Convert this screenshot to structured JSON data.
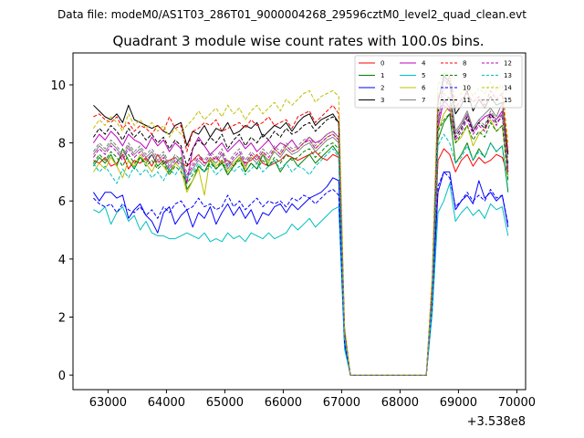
{
  "suptitle": "Data file: modeM0/AS1T03_286T01_9000004268_29596cztM0_level2_quad_clean.evt",
  "chart_data": {
    "type": "line",
    "title": "Quadrant 3 module wise count rates with 100.0s bins.",
    "xlabel": "",
    "ylabel": "",
    "x_offset_label": "+3.538e8",
    "xlim": [
      62400,
      70150
    ],
    "ylim": [
      -0.5,
      11.1
    ],
    "xticks": [
      63000,
      64000,
      65000,
      66000,
      67000,
      68000,
      69000,
      70000
    ],
    "xtick_labels": [
      "63000",
      "64000",
      "65000",
      "66000",
      "67000",
      "68000",
      "69000",
      "70000"
    ],
    "yticks": [
      0,
      2,
      4,
      6,
      8,
      10
    ],
    "ytick_labels": [
      "0",
      "2",
      "4",
      "6",
      "8",
      "10"
    ],
    "grid": false,
    "legend": {
      "position": "top-right",
      "columns": 4,
      "entries": [
        "0",
        "1",
        "2",
        "3",
        "4",
        "5",
        "6",
        "7",
        "8",
        "9",
        "10",
        "11",
        "12",
        "13",
        "14",
        "15"
      ]
    },
    "x_start": 62750,
    "x_step": 100,
    "series": [
      {
        "name": "0",
        "color": "#ff0000",
        "dash": "solid",
        "values": [
          7.4,
          7.3,
          7.5,
          7.2,
          7.3,
          7.6,
          7.1,
          7.4,
          7.3,
          7.5,
          7.2,
          7.6,
          7.3,
          7.4,
          7.5,
          7.3,
          7.2,
          7.4,
          7.6,
          7.3,
          7.4,
          7.5,
          7.3,
          7.4,
          7.2,
          7.5,
          7.3,
          7.4,
          7.6,
          7.3,
          7.2,
          7.3,
          7.4,
          7.6,
          7.5,
          7.4,
          7.5,
          7.6,
          7.7,
          7.5,
          7.4,
          7.6,
          7.5,
          1.3,
          0,
          0,
          0,
          0,
          0,
          0,
          0,
          0,
          0,
          0,
          0,
          0,
          0,
          0,
          2.5,
          7.4,
          7.8,
          7.6,
          7.0,
          7.4,
          7.6,
          7.2,
          7.5,
          7.3,
          7.4,
          7.6,
          7.5,
          6.9
        ]
      },
      {
        "name": "1",
        "color": "#008000",
        "dash": "solid",
        "values": [
          7.2,
          7.5,
          7.3,
          7.6,
          7.2,
          7.8,
          7.4,
          7.1,
          7.5,
          7.3,
          7.6,
          7.2,
          7.4,
          7.0,
          7.3,
          7.5,
          6.4,
          6.7,
          7.2,
          7.0,
          7.4,
          7.1,
          7.3,
          6.9,
          7.2,
          7.5,
          7.0,
          7.3,
          7.1,
          7.6,
          7.2,
          7.4,
          7.0,
          7.3,
          7.5,
          7.2,
          7.4,
          7.6,
          7.3,
          7.5,
          7.7,
          7.9,
          7.6,
          1.2,
          0,
          0,
          0,
          0,
          0,
          0,
          0,
          0,
          0,
          0,
          0,
          0,
          0,
          0,
          2.7,
          8.1,
          8.7,
          9.0,
          7.3,
          7.6,
          8.0,
          7.4,
          7.8,
          7.5,
          8.0,
          7.7,
          7.9,
          6.3
        ]
      },
      {
        "name": "2",
        "color": "#0000ff",
        "dash": "solid",
        "values": [
          6.3,
          6.0,
          6.3,
          6.3,
          6.1,
          6.2,
          5.4,
          5.7,
          5.9,
          5.5,
          5.3,
          4.9,
          5.6,
          5.8,
          5.2,
          5.5,
          5.7,
          5.1,
          5.6,
          5.4,
          5.8,
          5.2,
          5.6,
          5.9,
          5.5,
          5.8,
          5.4,
          5.7,
          5.2,
          5.6,
          5.5,
          5.8,
          5.9,
          5.6,
          5.9,
          5.7,
          5.9,
          6.1,
          6.2,
          6.3,
          6.5,
          6.8,
          6.7,
          1.1,
          0,
          0,
          0,
          0,
          0,
          0,
          0,
          0,
          0,
          0,
          0,
          0,
          0,
          0,
          2.6,
          6.3,
          7.0,
          7.0,
          5.7,
          6.0,
          6.2,
          5.9,
          6.7,
          6.1,
          6.3,
          6.0,
          6.2,
          5.1
        ]
      },
      {
        "name": "3",
        "color": "#000000",
        "dash": "solid",
        "values": [
          9.3,
          9.1,
          8.9,
          8.8,
          9.0,
          8.7,
          9.3,
          8.8,
          8.7,
          8.6,
          8.5,
          8.6,
          8.4,
          8.3,
          8.6,
          8.7,
          7.9,
          8.4,
          8.3,
          8.6,
          8.2,
          8.5,
          8.4,
          8.7,
          8.3,
          8.4,
          8.6,
          8.5,
          8.7,
          8.2,
          8.4,
          8.6,
          8.5,
          8.7,
          8.4,
          8.7,
          8.9,
          9.0,
          8.6,
          8.8,
          8.9,
          9.0,
          8.7,
          1.5,
          0,
          0,
          0,
          0,
          0,
          0,
          0,
          0,
          0,
          0,
          0,
          0,
          0,
          0,
          3.0,
          9.4,
          10.3,
          10.1,
          9.0,
          9.3,
          9.8,
          9.1,
          9.5,
          9.2,
          9.6,
          9.3,
          9.4,
          7.6
        ]
      },
      {
        "name": "4",
        "color": "#bf00bf",
        "dash": "solid",
        "values": [
          8.0,
          8.3,
          8.1,
          8.4,
          8.2,
          7.9,
          8.3,
          8.1,
          8.0,
          7.8,
          8.2,
          7.9,
          8.1,
          7.7,
          8.0,
          7.8,
          6.6,
          7.8,
          8.2,
          7.9,
          7.6,
          7.8,
          8.0,
          7.7,
          7.9,
          8.1,
          7.8,
          8.0,
          7.7,
          7.9,
          8.1,
          7.8,
          8.0,
          7.9,
          8.1,
          7.8,
          8.0,
          8.2,
          8.0,
          8.1,
          8.3,
          8.4,
          8.2,
          1.4,
          0,
          0,
          0,
          0,
          0,
          0,
          0,
          0,
          0,
          0,
          0,
          0,
          0,
          0,
          2.8,
          8.5,
          9.5,
          9.2,
          8.3,
          8.6,
          9.0,
          8.4,
          8.7,
          8.9,
          9.0,
          8.8,
          9.1,
          7.0
        ]
      },
      {
        "name": "5",
        "color": "#00bfbf",
        "dash": "solid",
        "values": [
          5.7,
          5.6,
          5.8,
          5.2,
          5.6,
          5.8,
          5.3,
          5.5,
          5.0,
          5.3,
          4.9,
          4.8,
          4.8,
          4.7,
          4.7,
          4.8,
          4.9,
          4.8,
          4.7,
          4.9,
          4.6,
          4.7,
          4.6,
          4.9,
          4.7,
          4.8,
          4.6,
          4.9,
          4.8,
          4.7,
          4.9,
          4.7,
          4.8,
          4.9,
          5.2,
          5.0,
          5.2,
          5.4,
          5.1,
          5.3,
          5.5,
          5.7,
          5.8,
          0.9,
          0,
          0,
          0,
          0,
          0,
          0,
          0,
          0,
          0,
          0,
          0,
          0,
          0,
          0,
          2.1,
          5.6,
          6.0,
          6.6,
          5.3,
          5.6,
          5.8,
          5.5,
          5.7,
          5.4,
          5.9,
          5.7,
          5.8,
          4.8
        ]
      },
      {
        "name": "6",
        "color": "#bfbf00",
        "dash": "solid",
        "values": [
          7.0,
          7.3,
          7.1,
          7.5,
          7.2,
          6.8,
          7.4,
          7.2,
          7.6,
          7.3,
          7.0,
          7.4,
          7.2,
          6.9,
          7.3,
          7.1,
          6.3,
          6.7,
          7.1,
          6.2,
          7.5,
          7.2,
          7.4,
          7.0,
          7.3,
          7.5,
          7.1,
          7.6,
          7.4,
          7.7,
          7.3,
          7.8,
          7.6,
          7.9,
          7.7,
          7.8,
          8.0,
          8.1,
          7.8,
          8.0,
          8.2,
          8.3,
          8.1,
          1.3,
          0,
          0,
          0,
          0,
          0,
          0,
          0,
          0,
          0,
          0,
          0,
          0,
          0,
          0,
          2.9,
          8.4,
          9.0,
          9.3,
          8.0,
          8.2,
          8.6,
          7.9,
          8.3,
          8.5,
          8.8,
          8.4,
          8.6,
          6.8
        ]
      },
      {
        "name": "7",
        "color": "#808080",
        "dash": "solid",
        "values": [
          7.6,
          7.9,
          7.7,
          8.0,
          7.8,
          7.5,
          7.9,
          7.6,
          7.8,
          7.5,
          7.7,
          7.4,
          7.6,
          7.2,
          7.5,
          7.3,
          6.8,
          7.1,
          7.4,
          7.2,
          7.5,
          7.3,
          7.6,
          7.1,
          7.4,
          7.6,
          7.2,
          7.5,
          7.3,
          7.6,
          7.4,
          7.7,
          7.5,
          7.8,
          7.6,
          7.7,
          7.9,
          8.0,
          7.7,
          7.9,
          8.1,
          8.2,
          8.0,
          1.4,
          0,
          0,
          0,
          0,
          0,
          0,
          0,
          0,
          0,
          0,
          0,
          0,
          0,
          0,
          2.8,
          8.6,
          10.2,
          10.0,
          8.4,
          8.7,
          9.1,
          8.5,
          8.8,
          9.0,
          9.2,
          8.9,
          9.4,
          7.1
        ]
      },
      {
        "name": "8",
        "color": "#ff0000",
        "dash": "dashed",
        "values": [
          8.9,
          9.0,
          8.8,
          8.7,
          8.9,
          8.5,
          8.7,
          8.4,
          8.6,
          8.5,
          8.3,
          8.6,
          8.4,
          8.9,
          8.5,
          8.6,
          7.7,
          8.4,
          8.5,
          8.7,
          8.6,
          8.8,
          8.4,
          8.5,
          8.6,
          8.7,
          8.5,
          8.8,
          8.6,
          8.7,
          8.9,
          8.6,
          8.7,
          8.8,
          8.5,
          8.9,
          9.0,
          9.1,
          8.7,
          8.9,
          9.1,
          9.3,
          9.0,
          1.6,
          0,
          0,
          0,
          0,
          0,
          0,
          0,
          0,
          0,
          0,
          0,
          0,
          0,
          0,
          3.3,
          9.6,
          9.8,
          10.3,
          9.2,
          9.5,
          9.7,
          9.4,
          9.6,
          9.3,
          9.8,
          9.5,
          9.7,
          7.7
        ]
      },
      {
        "name": "9",
        "color": "#008000",
        "dash": "dashed",
        "values": [
          7.3,
          7.6,
          7.4,
          7.7,
          7.5,
          7.2,
          7.6,
          7.3,
          7.5,
          7.2,
          7.4,
          7.1,
          7.3,
          6.9,
          7.2,
          7.0,
          6.6,
          6.9,
          7.2,
          7.0,
          7.3,
          7.1,
          7.4,
          6.9,
          7.2,
          7.4,
          7.0,
          7.3,
          7.1,
          7.4,
          7.2,
          7.5,
          7.3,
          7.6,
          7.4,
          7.5,
          7.7,
          7.8,
          7.5,
          7.7,
          7.9,
          8.0,
          7.8,
          1.3,
          0,
          0,
          0,
          0,
          0,
          0,
          0,
          0,
          0,
          0,
          0,
          0,
          0,
          0,
          2.7,
          8.4,
          8.8,
          9.0,
          8.0,
          8.3,
          8.6,
          8.1,
          8.4,
          8.2,
          8.7,
          8.4,
          8.6,
          6.7
        ]
      },
      {
        "name": "10",
        "color": "#0000ff",
        "dash": "dashed",
        "values": [
          6.1,
          5.9,
          5.8,
          5.9,
          5.6,
          5.9,
          5.7,
          5.6,
          5.8,
          5.5,
          5.7,
          5.4,
          5.8,
          5.6,
          5.9,
          6.0,
          5.7,
          5.8,
          6.1,
          5.8,
          5.9,
          5.7,
          5.8,
          6.2,
          5.8,
          6.0,
          5.7,
          5.9,
          6.1,
          5.8,
          6.0,
          5.9,
          6.0,
          5.8,
          6.1,
          6.0,
          6.2,
          6.1,
          5.9,
          6.1,
          6.3,
          6.4,
          6.2,
          1.1,
          0,
          0,
          0,
          0,
          0,
          0,
          0,
          0,
          0,
          0,
          0,
          0,
          0,
          0,
          2.4,
          6.5,
          7.0,
          6.8,
          5.8,
          6.0,
          6.3,
          6.0,
          6.2,
          6.0,
          6.4,
          6.1,
          6.2,
          5.2
        ]
      },
      {
        "name": "11",
        "color": "#000000",
        "dash": "dashed",
        "values": [
          8.2,
          8.5,
          8.3,
          8.6,
          8.4,
          8.1,
          8.5,
          8.2,
          8.4,
          8.1,
          8.3,
          8.0,
          8.2,
          7.8,
          8.1,
          7.9,
          7.2,
          7.8,
          8.1,
          7.9,
          8.2,
          8.0,
          8.3,
          7.8,
          8.1,
          8.3,
          7.9,
          8.2,
          8.0,
          8.3,
          8.1,
          8.4,
          8.2,
          8.5,
          8.3,
          8.4,
          8.6,
          8.7,
          8.4,
          8.6,
          8.8,
          8.9,
          8.7,
          1.5,
          0,
          0,
          0,
          0,
          0,
          0,
          0,
          0,
          0,
          0,
          0,
          0,
          0,
          0,
          3.0,
          9.1,
          9.4,
          9.6,
          8.2,
          8.5,
          8.9,
          8.4,
          8.7,
          8.5,
          9.0,
          8.7,
          8.9,
          7.3
        ]
      },
      {
        "name": "12",
        "color": "#bf00bf",
        "dash": "dashed",
        "values": [
          7.5,
          7.8,
          7.6,
          7.9,
          7.7,
          7.4,
          7.8,
          7.5,
          7.7,
          7.4,
          7.6,
          7.3,
          7.5,
          7.1,
          7.4,
          7.2,
          6.9,
          7.2,
          7.5,
          7.3,
          7.6,
          7.4,
          7.7,
          7.2,
          7.5,
          7.7,
          7.3,
          7.6,
          7.4,
          7.7,
          7.5,
          7.8,
          7.6,
          7.9,
          7.7,
          7.8,
          8.0,
          8.1,
          7.8,
          8.0,
          8.2,
          8.3,
          8.1,
          1.4,
          0,
          0,
          0,
          0,
          0,
          0,
          0,
          0,
          0,
          0,
          0,
          0,
          0,
          0,
          2.8,
          8.9,
          9.3,
          9.1,
          8.1,
          8.4,
          8.8,
          8.3,
          8.6,
          8.4,
          8.9,
          8.6,
          9.0,
          7.0
        ]
      },
      {
        "name": "13",
        "color": "#00bfbf",
        "dash": "dashed",
        "values": [
          7.3,
          7.0,
          7.2,
          6.9,
          6.6,
          7.1,
          6.8,
          7.2,
          6.9,
          7.1,
          6.8,
          7.0,
          6.7,
          7.1,
          6.9,
          7.2,
          6.8,
          7.0,
          7.3,
          7.0,
          7.2,
          6.9,
          7.1,
          7.3,
          7.0,
          7.2,
          6.9,
          7.1,
          7.3,
          7.0,
          7.2,
          7.4,
          7.1,
          7.3,
          7.0,
          7.2,
          7.1,
          6.9,
          7.2,
          7.4,
          7.6,
          7.8,
          7.5,
          1.3,
          0,
          0,
          0,
          0,
          0,
          0,
          0,
          0,
          0,
          0,
          0,
          0,
          0,
          0,
          2.6,
          7.9,
          8.3,
          8.0,
          7.3,
          7.5,
          7.9,
          7.4,
          7.7,
          7.5,
          8.0,
          7.7,
          7.9,
          6.4
        ]
      },
      {
        "name": "14",
        "color": "#bfbf00",
        "dash": "dashed",
        "values": [
          8.5,
          8.8,
          8.6,
          8.9,
          8.7,
          8.4,
          9.0,
          8.6,
          8.8,
          8.5,
          8.7,
          8.4,
          8.6,
          8.2,
          8.5,
          8.3,
          8.6,
          8.8,
          9.1,
          8.8,
          9.0,
          9.2,
          8.9,
          9.3,
          9.0,
          9.2,
          8.8,
          9.1,
          9.3,
          9.0,
          9.2,
          9.4,
          9.1,
          9.5,
          9.3,
          9.5,
          9.7,
          9.8,
          9.4,
          9.6,
          9.7,
          9.8,
          9.6,
          1.7,
          0,
          0,
          0,
          0,
          0,
          0,
          0,
          0,
          0,
          0,
          0,
          0,
          0,
          0,
          3.4,
          10.0,
          10.4,
          10.3,
          9.5,
          9.7,
          10.0,
          9.6,
          9.9,
          9.7,
          10.1,
          9.8,
          10.0,
          8.0
        ]
      },
      {
        "name": "15",
        "color": "#808080",
        "dash": "dashed",
        "values": [
          7.7,
          8.0,
          7.8,
          8.1,
          7.9,
          7.6,
          8.0,
          7.7,
          7.9,
          7.6,
          7.8,
          7.5,
          7.7,
          7.3,
          7.6,
          7.4,
          7.0,
          7.3,
          7.6,
          7.4,
          7.7,
          7.5,
          7.8,
          7.3,
          7.6,
          7.8,
          7.4,
          7.7,
          7.5,
          7.8,
          7.6,
          7.9,
          7.7,
          8.0,
          7.8,
          7.9,
          8.1,
          8.2,
          7.9,
          8.1,
          8.3,
          8.4,
          8.2,
          1.4,
          0,
          0,
          0,
          0,
          0,
          0,
          0,
          0,
          0,
          0,
          0,
          0,
          0,
          0,
          2.9,
          9.2,
          9.7,
          9.5,
          8.3,
          8.6,
          9.0,
          8.5,
          8.8,
          8.6,
          9.1,
          8.8,
          9.0,
          7.2
        ]
      }
    ]
  }
}
